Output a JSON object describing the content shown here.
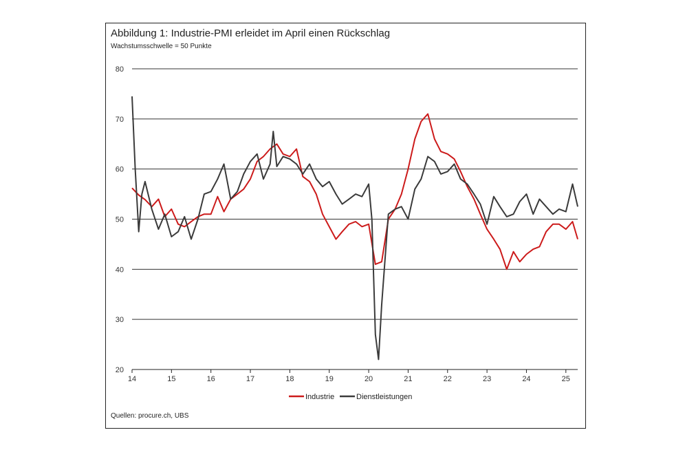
{
  "title": "Abbildung 1: Industrie-PMI erleidet im April einen Rückschlag",
  "subtitle": "Wachstumsschwelle = 50 Punkte",
  "source": "Quellen: procure.ch, UBS",
  "chart_data": {
    "type": "line",
    "title": "Abbildung 1: Industrie-PMI erleidet im April einen Rückschlag",
    "subtitle": "Wachstumsschwelle = 50 Punkte",
    "xlabel": "",
    "ylabel": "",
    "xlim": [
      2014.0,
      2025.3
    ],
    "ylim": [
      20,
      80
    ],
    "y_ticks": [
      80,
      70,
      60,
      50,
      40,
      30,
      20
    ],
    "x_tick_labels": [
      "14",
      "15",
      "16",
      "17",
      "18",
      "19",
      "20",
      "21",
      "22",
      "23",
      "24",
      "25"
    ],
    "grid": "horizontal",
    "legend_position": "bottom",
    "series": [
      {
        "name": "Industrie",
        "color": "#cc1a1a",
        "x": [
          2014.0,
          2014.17,
          2014.33,
          2014.5,
          2014.67,
          2014.83,
          2015.0,
          2015.17,
          2015.33,
          2015.5,
          2015.67,
          2015.83,
          2016.0,
          2016.17,
          2016.33,
          2016.5,
          2016.67,
          2016.83,
          2017.0,
          2017.17,
          2017.33,
          2017.5,
          2017.67,
          2017.83,
          2018.0,
          2018.17,
          2018.33,
          2018.5,
          2018.67,
          2018.83,
          2019.0,
          2019.17,
          2019.33,
          2019.5,
          2019.67,
          2019.83,
          2020.0,
          2020.17,
          2020.33,
          2020.5,
          2020.67,
          2020.83,
          2021.0,
          2021.17,
          2021.33,
          2021.5,
          2021.67,
          2021.83,
          2022.0,
          2022.17,
          2022.33,
          2022.5,
          2022.67,
          2022.83,
          2023.0,
          2023.17,
          2023.33,
          2023.5,
          2023.67,
          2023.83,
          2024.0,
          2024.17,
          2024.33,
          2024.5,
          2024.67,
          2024.83,
          2025.0,
          2025.17,
          2025.3
        ],
        "values": [
          56.2,
          54.8,
          53.9,
          52.5,
          54.0,
          50.5,
          52.0,
          49.0,
          48.5,
          49.5,
          50.5,
          51.0,
          51.0,
          54.5,
          51.5,
          54.0,
          55.0,
          56.0,
          58.0,
          61.5,
          62.5,
          64.0,
          65.0,
          63.0,
          62.5,
          64.0,
          58.5,
          57.5,
          55.0,
          51.0,
          48.5,
          46.0,
          47.5,
          49.0,
          49.5,
          48.5,
          49.0,
          41.0,
          41.5,
          50.0,
          52.0,
          55.0,
          60.0,
          66.0,
          69.5,
          71.0,
          66.0,
          63.5,
          63.0,
          62.0,
          59.5,
          56.5,
          54.0,
          51.0,
          48.0,
          46.0,
          44.0,
          40.0,
          43.5,
          41.5,
          43.0,
          44.0,
          44.5,
          47.5,
          49.0,
          49.0,
          48.0,
          49.5,
          46.0
        ]
      },
      {
        "name": "Dienstleistungen",
        "color": "#3a3a3a",
        "x": [
          2014.0,
          2014.08,
          2014.17,
          2014.25,
          2014.33,
          2014.5,
          2014.67,
          2014.83,
          2015.0,
          2015.17,
          2015.33,
          2015.5,
          2015.67,
          2015.83,
          2016.0,
          2016.17,
          2016.33,
          2016.5,
          2016.67,
          2016.83,
          2017.0,
          2017.17,
          2017.33,
          2017.5,
          2017.58,
          2017.67,
          2017.83,
          2018.0,
          2018.17,
          2018.33,
          2018.5,
          2018.67,
          2018.83,
          2019.0,
          2019.17,
          2019.33,
          2019.5,
          2019.67,
          2019.83,
          2020.0,
          2020.08,
          2020.17,
          2020.25,
          2020.33,
          2020.5,
          2020.67,
          2020.83,
          2021.0,
          2021.17,
          2021.33,
          2021.5,
          2021.67,
          2021.83,
          2022.0,
          2022.17,
          2022.33,
          2022.5,
          2022.67,
          2022.83,
          2023.0,
          2023.17,
          2023.33,
          2023.5,
          2023.67,
          2023.83,
          2024.0,
          2024.17,
          2024.33,
          2024.5,
          2024.67,
          2024.83,
          2025.0,
          2025.17,
          2025.3
        ],
        "values": [
          74.5,
          60.0,
          47.5,
          55.0,
          57.5,
          52.0,
          48.0,
          51.0,
          46.5,
          47.5,
          50.5,
          46.0,
          50.0,
          55.0,
          55.5,
          58.0,
          61.0,
          54.0,
          55.5,
          59.0,
          61.5,
          63.0,
          58.0,
          61.0,
          67.5,
          60.5,
          62.5,
          62.0,
          61.0,
          59.0,
          61.0,
          58.0,
          56.5,
          57.5,
          55.0,
          53.0,
          54.0,
          55.0,
          54.5,
          57.0,
          50.0,
          27.0,
          22.0,
          33.0,
          51.0,
          52.0,
          52.5,
          50.0,
          56.0,
          58.0,
          62.5,
          61.5,
          59.0,
          59.5,
          61.0,
          58.0,
          57.0,
          55.0,
          53.0,
          49.0,
          54.5,
          52.5,
          50.5,
          51.0,
          53.5,
          55.0,
          51.0,
          54.0,
          52.5,
          51.0,
          52.0,
          51.5,
          57.0,
          52.5
        ]
      }
    ]
  }
}
